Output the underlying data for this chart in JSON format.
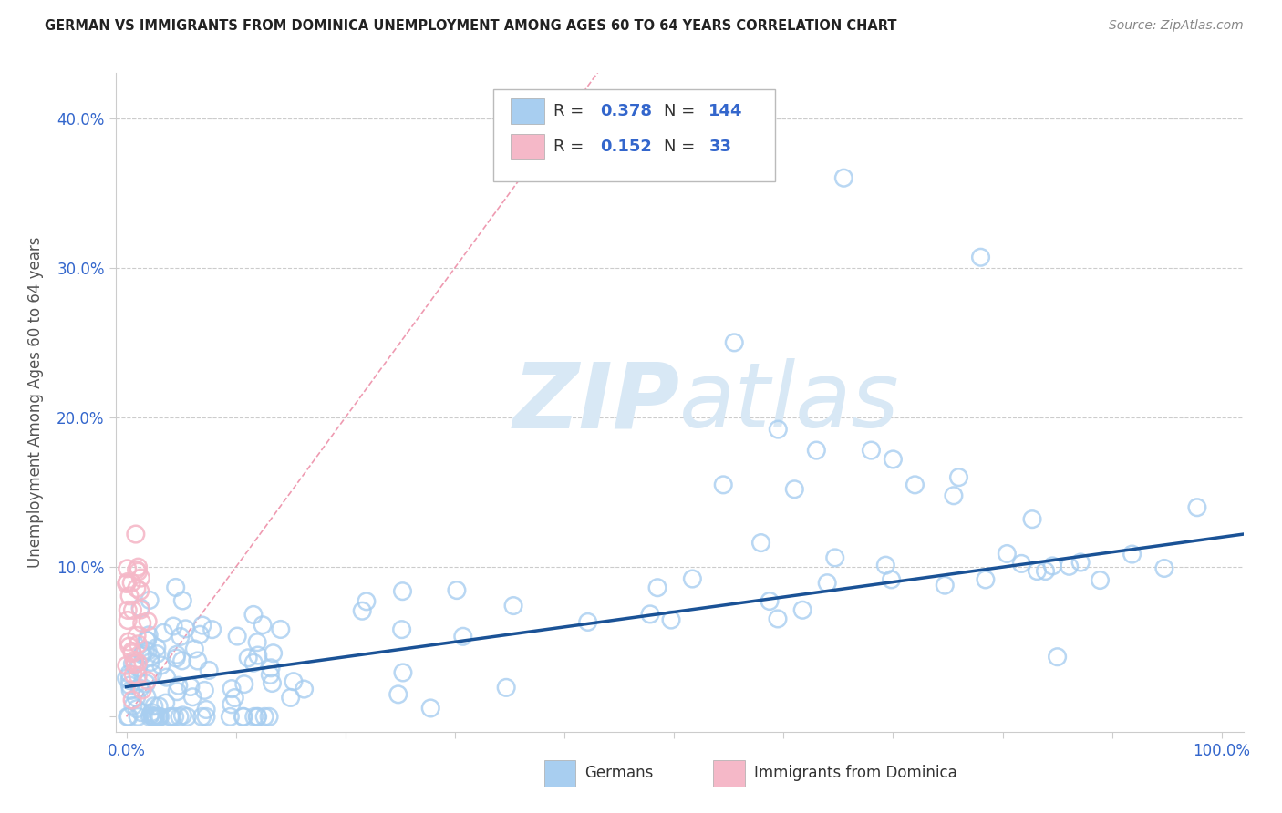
{
  "title": "GERMAN VS IMMIGRANTS FROM DOMINICA UNEMPLOYMENT AMONG AGES 60 TO 64 YEARS CORRELATION CHART",
  "source": "Source: ZipAtlas.com",
  "ylabel": "Unemployment Among Ages 60 to 64 years",
  "german_color": "#a8cef0",
  "german_edge": "#7ab0e0",
  "dominica_color": "#f5b8c8",
  "dominica_edge": "#e090a8",
  "trend_german_color": "#1a5296",
  "trend_dominica_color": "#e87090",
  "legend_german_R": "0.378",
  "legend_german_N": "144",
  "legend_dominica_R": "0.152",
  "legend_dominica_N": "33",
  "legend_R_color": "#3366cc",
  "legend_N_color": "#3366cc",
  "title_color": "#222222",
  "source_color": "#888888",
  "axis_tick_color": "#3366cc",
  "ylabel_color": "#555555",
  "watermark_color": "#d0dff0",
  "grid_color": "#cccccc",
  "background": "#ffffff"
}
